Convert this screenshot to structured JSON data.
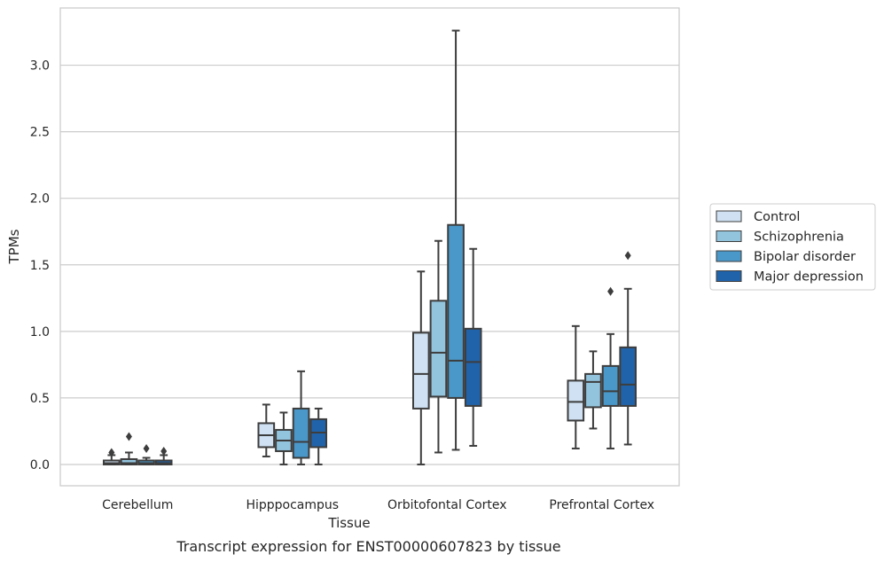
{
  "chart_data": {
    "type": "box",
    "caption": "Transcript expression for ENST00000607823 by tissue",
    "xlabel": "Tissue",
    "ylabel": "TPMs",
    "ylim": [
      -0.16,
      3.43
    ],
    "yticks": [
      0.0,
      0.5,
      1.0,
      1.5,
      2.0,
      2.5,
      3.0
    ],
    "ytick_labels": [
      "0.0",
      "0.5",
      "1.0",
      "1.5",
      "2.0",
      "2.5",
      "3.0"
    ],
    "grid": "horizontal",
    "legend_position": "right",
    "categories": [
      "Cerebellum",
      "Hipppocampus",
      "Orbitofontal Cortex",
      "Prefrontal Cortex"
    ],
    "series": [
      {
        "name": "Control",
        "color": "#cfe1f2",
        "boxes": [
          {
            "whislo": 0.0,
            "q1": 0.0,
            "med": 0.01,
            "q3": 0.03,
            "whishi": 0.07,
            "fliers": [
              0.09
            ]
          },
          {
            "whislo": 0.06,
            "q1": 0.13,
            "med": 0.22,
            "q3": 0.31,
            "whishi": 0.45,
            "fliers": []
          },
          {
            "whislo": 0.0,
            "q1": 0.42,
            "med": 0.68,
            "q3": 0.99,
            "whishi": 1.45,
            "fliers": []
          },
          {
            "whislo": 0.12,
            "q1": 0.33,
            "med": 0.47,
            "q3": 0.63,
            "whishi": 1.04,
            "fliers": []
          }
        ]
      },
      {
        "name": "Schizophrenia",
        "color": "#93c4de",
        "boxes": [
          {
            "whislo": 0.0,
            "q1": 0.0,
            "med": 0.01,
            "q3": 0.04,
            "whishi": 0.09,
            "fliers": [
              0.21
            ]
          },
          {
            "whislo": 0.0,
            "q1": 0.1,
            "med": 0.18,
            "q3": 0.26,
            "whishi": 0.39,
            "fliers": []
          },
          {
            "whislo": 0.09,
            "q1": 0.51,
            "med": 0.84,
            "q3": 1.23,
            "whishi": 1.68,
            "fliers": []
          },
          {
            "whislo": 0.27,
            "q1": 0.43,
            "med": 0.62,
            "q3": 0.68,
            "whishi": 0.85,
            "fliers": []
          }
        ]
      },
      {
        "name": "Bipolar disorder",
        "color": "#4a98c9",
        "boxes": [
          {
            "whislo": 0.0,
            "q1": 0.0,
            "med": 0.01,
            "q3": 0.03,
            "whishi": 0.05,
            "fliers": [
              0.12
            ]
          },
          {
            "whislo": 0.0,
            "q1": 0.05,
            "med": 0.17,
            "q3": 0.42,
            "whishi": 0.7,
            "fliers": []
          },
          {
            "whislo": 0.11,
            "q1": 0.5,
            "med": 0.78,
            "q3": 1.8,
            "whishi": 3.26,
            "fliers": []
          },
          {
            "whislo": 0.12,
            "q1": 0.44,
            "med": 0.55,
            "q3": 0.74,
            "whishi": 0.98,
            "fliers": [
              1.3
            ]
          }
        ]
      },
      {
        "name": "Major depression",
        "color": "#2163aa",
        "boxes": [
          {
            "whislo": 0.0,
            "q1": 0.0,
            "med": 0.01,
            "q3": 0.03,
            "whishi": 0.07,
            "fliers": [
              0.1
            ]
          },
          {
            "whislo": 0.0,
            "q1": 0.13,
            "med": 0.24,
            "q3": 0.34,
            "whishi": 0.42,
            "fliers": []
          },
          {
            "whislo": 0.14,
            "q1": 0.44,
            "med": 0.77,
            "q3": 1.02,
            "whishi": 1.62,
            "fliers": []
          },
          {
            "whislo": 0.15,
            "q1": 0.44,
            "med": 0.6,
            "q3": 0.88,
            "whishi": 1.32,
            "fliers": [
              1.57
            ]
          }
        ]
      }
    ]
  }
}
